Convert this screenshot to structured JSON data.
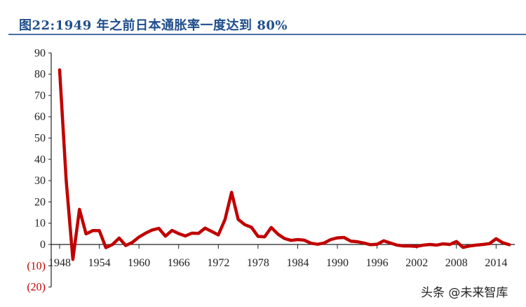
{
  "title": "图22:1949 年之前日本通胀率一度达到 80%",
  "watermark": "头条 @未来智库",
  "chart_data": {
    "type": "line",
    "title": "图22:1949 年之前日本通胀率一度达到 80%",
    "xlabel": "",
    "ylabel": "",
    "ylim": [
      -20,
      90
    ],
    "xlim": [
      1948,
      2016
    ],
    "grid": false,
    "y_ticks": [
      90,
      80,
      70,
      60,
      50,
      40,
      30,
      20,
      10,
      0,
      -10,
      -20
    ],
    "y_tick_labels": [
      "90",
      "80",
      "70",
      "60",
      "50",
      "40",
      "30",
      "20",
      "10",
      "0",
      "(10)",
      "(20)"
    ],
    "x_ticks": [
      1948,
      1954,
      1960,
      1966,
      1972,
      1978,
      1984,
      1990,
      1996,
      2002,
      2008,
      2014
    ],
    "x_tick_labels": [
      "1948",
      "1954",
      "1960",
      "1966",
      "1972",
      "1978",
      "1984",
      "1990",
      "1996",
      "2002",
      "2008",
      "2014"
    ],
    "line_color": "#c00000",
    "negative_label_color": "#c00000",
    "x": [
      1948,
      1949,
      1950,
      1951,
      1952,
      1953,
      1954,
      1955,
      1956,
      1957,
      1958,
      1959,
      1960,
      1961,
      1962,
      1963,
      1964,
      1965,
      1966,
      1967,
      1968,
      1969,
      1970,
      1971,
      1972,
      1973,
      1974,
      1975,
      1976,
      1977,
      1978,
      1979,
      1980,
      1981,
      1982,
      1983,
      1984,
      1985,
      1986,
      1987,
      1988,
      1989,
      1990,
      1991,
      1992,
      1993,
      1994,
      1995,
      1996,
      1997,
      1998,
      1999,
      2000,
      2001,
      2002,
      2003,
      2004,
      2005,
      2006,
      2007,
      2008,
      2009,
      2010,
      2011,
      2012,
      2013,
      2014,
      2015,
      2016
    ],
    "y": [
      82,
      30,
      -7,
      16.5,
      5,
      6.5,
      6.5,
      -1.5,
      0,
      3,
      -0.5,
      1,
      3.5,
      5.3,
      6.8,
      7.6,
      3.9,
      6.6,
      5.1,
      4.0,
      5.3,
      5.2,
      7.7,
      6.1,
      4.5,
      11.7,
      24.5,
      11.8,
      9.3,
      8.1,
      3.8,
      3.6,
      8.0,
      4.9,
      2.8,
      1.9,
      2.3,
      2.0,
      0.6,
      0.1,
      0.7,
      2.3,
      3.1,
      3.3,
      1.6,
      1.3,
      0.7,
      -0.1,
      0.1,
      1.7,
      0.7,
      -0.3,
      -0.7,
      -0.7,
      -0.9,
      -0.3,
      0,
      -0.3,
      0.3,
      0,
      1.4,
      -1.4,
      -0.7,
      -0.3,
      0,
      0.4,
      2.7,
      0.8,
      -0.1
    ]
  }
}
